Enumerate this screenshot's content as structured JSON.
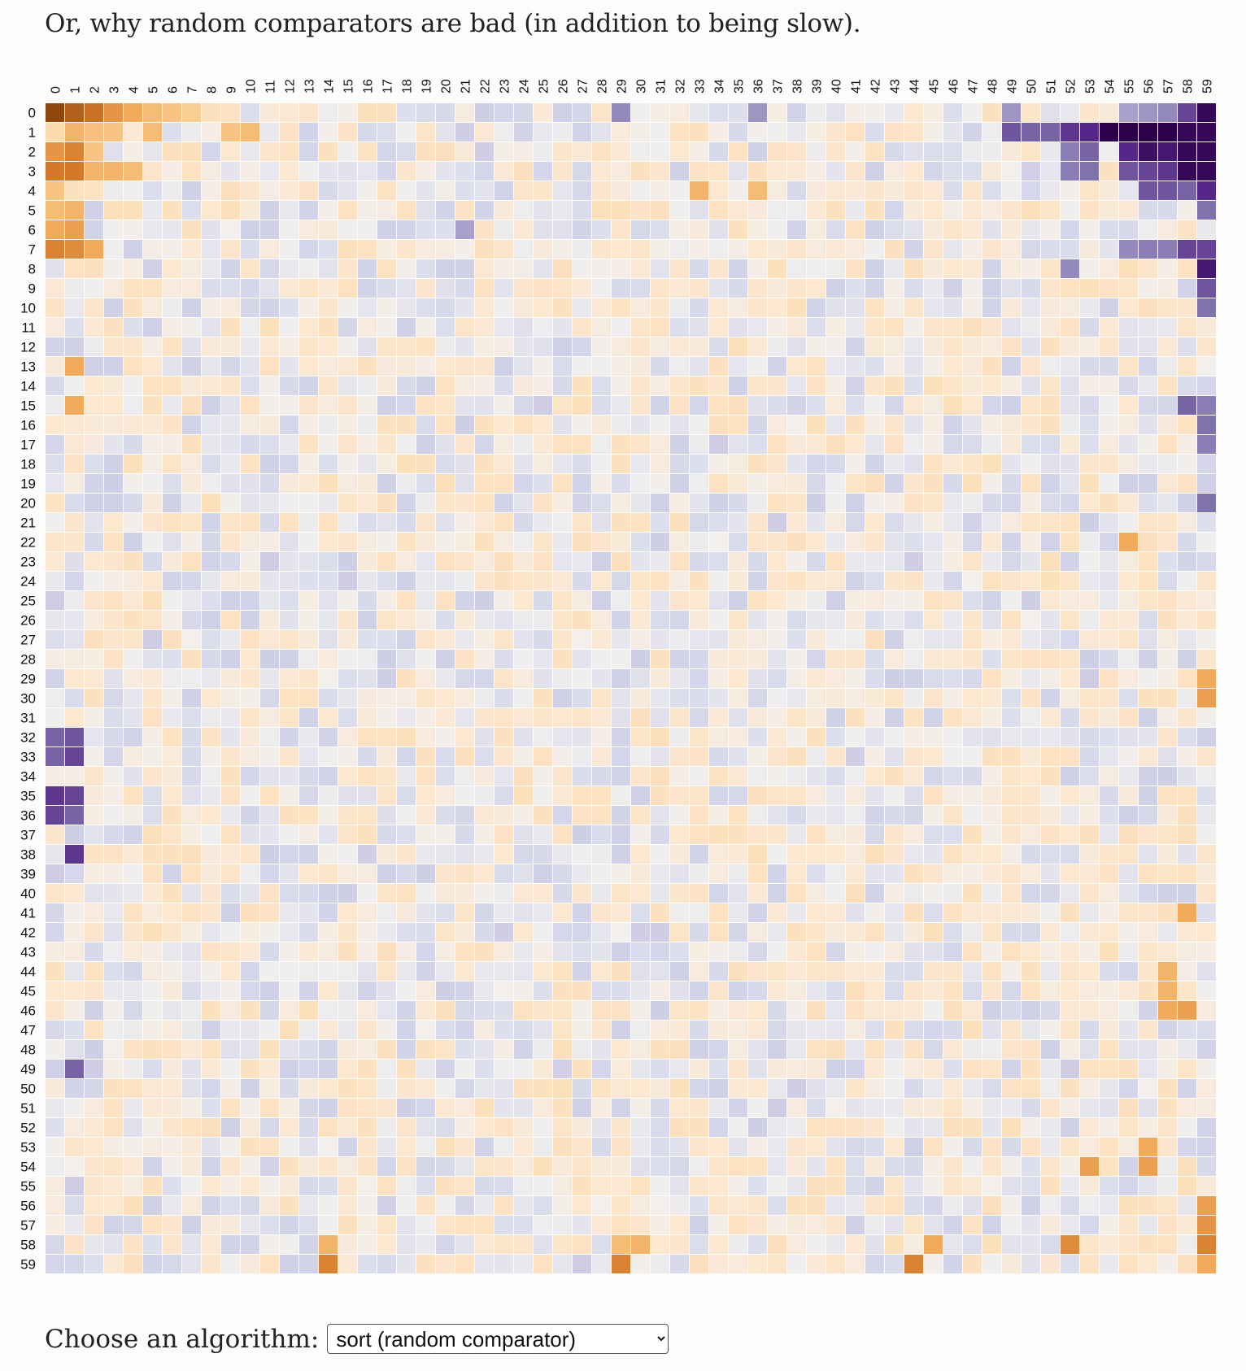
{
  "page": {
    "intro": "Or, why random comparators are bad (in addition to being slow)."
  },
  "controls": {
    "label": "Choose an algorithm:",
    "select": {
      "selected": "sort (random comparator)",
      "options": [
        "sort (random comparator)"
      ]
    }
  },
  "colors": {
    "low": "#2d004b",
    "mid": "#f7f7f7",
    "high": "#7f3b08",
    "gridline": "#ffffff"
  },
  "chart_data": {
    "type": "heatmap",
    "title": "",
    "xlabel": "",
    "ylabel": "",
    "size": 60,
    "x_labels": [
      "0",
      "1",
      "2",
      "3",
      "4",
      "5",
      "6",
      "7",
      "8",
      "9",
      "10",
      "11",
      "12",
      "13",
      "14",
      "15",
      "16",
      "17",
      "18",
      "19",
      "20",
      "21",
      "22",
      "23",
      "24",
      "25",
      "26",
      "27",
      "28",
      "29",
      "30",
      "31",
      "32",
      "33",
      "34",
      "35",
      "36",
      "37",
      "38",
      "39",
      "40",
      "41",
      "42",
      "43",
      "44",
      "45",
      "46",
      "47",
      "48",
      "49",
      "50",
      "51",
      "52",
      "53",
      "54",
      "55",
      "56",
      "57",
      "58",
      "59"
    ],
    "y_labels": [
      "0",
      "1",
      "2",
      "3",
      "4",
      "5",
      "6",
      "7",
      "8",
      "9",
      "10",
      "11",
      "12",
      "13",
      "14",
      "15",
      "16",
      "17",
      "18",
      "19",
      "20",
      "21",
      "22",
      "23",
      "24",
      "25",
      "26",
      "27",
      "28",
      "29",
      "30",
      "31",
      "32",
      "33",
      "34",
      "35",
      "36",
      "37",
      "38",
      "39",
      "40",
      "41",
      "42",
      "43",
      "44",
      "45",
      "46",
      "47",
      "48",
      "49",
      "50",
      "51",
      "52",
      "53",
      "54",
      "55",
      "56",
      "57",
      "58",
      "59"
    ],
    "value_range": [
      -1,
      1
    ],
    "colormap": "diverging purple-to-orange (PuOr)",
    "value_meaning": "positive = orange, negative = purple (estimated bias)",
    "strong_cells": [
      {
        "row": 0,
        "col": 0,
        "value": 0.95
      },
      {
        "row": 0,
        "col": 1,
        "value": 0.85
      },
      {
        "row": 0,
        "col": 2,
        "value": 0.78
      },
      {
        "row": 0,
        "col": 3,
        "value": 0.6
      },
      {
        "row": 0,
        "col": 4,
        "value": 0.5
      },
      {
        "row": 0,
        "col": 5,
        "value": 0.4
      },
      {
        "row": 0,
        "col": 6,
        "value": 0.35
      },
      {
        "row": 0,
        "col": 7,
        "value": 0.3
      },
      {
        "row": 0,
        "col": 29,
        "value": -0.4
      },
      {
        "row": 0,
        "col": 36,
        "value": -0.35
      },
      {
        "row": 0,
        "col": 49,
        "value": -0.35
      },
      {
        "row": 0,
        "col": 55,
        "value": -0.3
      },
      {
        "row": 0,
        "col": 56,
        "value": -0.35
      },
      {
        "row": 0,
        "col": 57,
        "value": -0.4
      },
      {
        "row": 0,
        "col": 58,
        "value": -0.65
      },
      {
        "row": 0,
        "col": 59,
        "value": -0.95
      },
      {
        "row": 1,
        "col": 0,
        "value": 0.2
      },
      {
        "row": 1,
        "col": 1,
        "value": 0.45
      },
      {
        "row": 1,
        "col": 2,
        "value": 0.38
      },
      {
        "row": 1,
        "col": 3,
        "value": 0.35
      },
      {
        "row": 1,
        "col": 5,
        "value": 0.4
      },
      {
        "row": 1,
        "col": 9,
        "value": 0.35
      },
      {
        "row": 1,
        "col": 10,
        "value": 0.4
      },
      {
        "row": 1,
        "col": 49,
        "value": -0.6
      },
      {
        "row": 1,
        "col": 50,
        "value": -0.55
      },
      {
        "row": 1,
        "col": 51,
        "value": -0.55
      },
      {
        "row": 1,
        "col": 52,
        "value": -0.7
      },
      {
        "row": 1,
        "col": 53,
        "value": -0.75
      },
      {
        "row": 1,
        "col": 54,
        "value": -1.0
      },
      {
        "row": 1,
        "col": 55,
        "value": -1.0
      },
      {
        "row": 1,
        "col": 56,
        "value": -1.0
      },
      {
        "row": 1,
        "col": 57,
        "value": -1.0
      },
      {
        "row": 1,
        "col": 58,
        "value": -0.95
      },
      {
        "row": 1,
        "col": 59,
        "value": -0.95
      },
      {
        "row": 2,
        "col": 0,
        "value": 0.6
      },
      {
        "row": 2,
        "col": 1,
        "value": 0.7
      },
      {
        "row": 2,
        "col": 2,
        "value": 0.35
      },
      {
        "row": 2,
        "col": 52,
        "value": -0.45
      },
      {
        "row": 2,
        "col": 53,
        "value": -0.55
      },
      {
        "row": 2,
        "col": 55,
        "value": -0.75
      },
      {
        "row": 2,
        "col": 56,
        "value": -0.9
      },
      {
        "row": 2,
        "col": 57,
        "value": -0.85
      },
      {
        "row": 2,
        "col": 58,
        "value": -0.95
      },
      {
        "row": 2,
        "col": 59,
        "value": -0.95
      },
      {
        "row": 3,
        "col": 0,
        "value": 0.75
      },
      {
        "row": 3,
        "col": 1,
        "value": 0.75
      },
      {
        "row": 3,
        "col": 2,
        "value": 0.45
      },
      {
        "row": 3,
        "col": 3,
        "value": 0.45
      },
      {
        "row": 3,
        "col": 4,
        "value": 0.4
      },
      {
        "row": 3,
        "col": 52,
        "value": -0.45
      },
      {
        "row": 3,
        "col": 53,
        "value": -0.5
      },
      {
        "row": 3,
        "col": 55,
        "value": -0.6
      },
      {
        "row": 3,
        "col": 56,
        "value": -0.65
      },
      {
        "row": 3,
        "col": 57,
        "value": -0.7
      },
      {
        "row": 3,
        "col": 58,
        "value": -0.95
      },
      {
        "row": 3,
        "col": 59,
        "value": -0.95
      },
      {
        "row": 4,
        "col": 0,
        "value": 0.35
      },
      {
        "row": 4,
        "col": 33,
        "value": 0.45
      },
      {
        "row": 4,
        "col": 36,
        "value": 0.4
      },
      {
        "row": 4,
        "col": 56,
        "value": -0.6
      },
      {
        "row": 4,
        "col": 57,
        "value": -0.6
      },
      {
        "row": 4,
        "col": 58,
        "value": -0.55
      },
      {
        "row": 4,
        "col": 59,
        "value": -0.75
      },
      {
        "row": 5,
        "col": 0,
        "value": 0.4
      },
      {
        "row": 5,
        "col": 1,
        "value": 0.45
      },
      {
        "row": 5,
        "col": 59,
        "value": -0.5
      },
      {
        "row": 6,
        "col": 0,
        "value": 0.5
      },
      {
        "row": 6,
        "col": 1,
        "value": 0.55
      },
      {
        "row": 6,
        "col": 21,
        "value": -0.3
      },
      {
        "row": 7,
        "col": 0,
        "value": 0.7
      },
      {
        "row": 7,
        "col": 1,
        "value": 0.65
      },
      {
        "row": 7,
        "col": 2,
        "value": 0.5
      },
      {
        "row": 7,
        "col": 55,
        "value": -0.4
      },
      {
        "row": 7,
        "col": 56,
        "value": -0.45
      },
      {
        "row": 7,
        "col": 57,
        "value": -0.45
      },
      {
        "row": 7,
        "col": 58,
        "value": -0.65
      },
      {
        "row": 7,
        "col": 59,
        "value": -0.65
      },
      {
        "row": 8,
        "col": 52,
        "value": -0.4
      },
      {
        "row": 8,
        "col": 59,
        "value": -0.85
      },
      {
        "row": 9,
        "col": 59,
        "value": -0.6
      },
      {
        "row": 10,
        "col": 59,
        "value": -0.5
      },
      {
        "row": 13,
        "col": 1,
        "value": 0.5
      },
      {
        "row": 15,
        "col": 1,
        "value": 0.5
      },
      {
        "row": 15,
        "col": 58,
        "value": -0.55
      },
      {
        "row": 15,
        "col": 59,
        "value": -0.45
      },
      {
        "row": 16,
        "col": 59,
        "value": -0.5
      },
      {
        "row": 17,
        "col": 59,
        "value": -0.45
      },
      {
        "row": 20,
        "col": 59,
        "value": -0.5
      },
      {
        "row": 22,
        "col": 55,
        "value": 0.5
      },
      {
        "row": 29,
        "col": 59,
        "value": 0.5
      },
      {
        "row": 30,
        "col": 59,
        "value": 0.55
      },
      {
        "row": 32,
        "col": 0,
        "value": -0.55
      },
      {
        "row": 32,
        "col": 1,
        "value": -0.6
      },
      {
        "row": 33,
        "col": 0,
        "value": -0.55
      },
      {
        "row": 33,
        "col": 1,
        "value": -0.65
      },
      {
        "row": 35,
        "col": 0,
        "value": -0.7
      },
      {
        "row": 35,
        "col": 1,
        "value": -0.65
      },
      {
        "row": 36,
        "col": 0,
        "value": -0.65
      },
      {
        "row": 36,
        "col": 1,
        "value": -0.55
      },
      {
        "row": 38,
        "col": 1,
        "value": -0.7
      },
      {
        "row": 49,
        "col": 1,
        "value": -0.55
      },
      {
        "row": 44,
        "col": 57,
        "value": 0.45
      },
      {
        "row": 45,
        "col": 57,
        "value": 0.45
      },
      {
        "row": 46,
        "col": 57,
        "value": 0.5
      },
      {
        "row": 46,
        "col": 58,
        "value": 0.55
      },
      {
        "row": 41,
        "col": 58,
        "value": 0.5
      },
      {
        "row": 53,
        "col": 56,
        "value": 0.5
      },
      {
        "row": 54,
        "col": 56,
        "value": 0.55
      },
      {
        "row": 54,
        "col": 53,
        "value": 0.55
      },
      {
        "row": 58,
        "col": 52,
        "value": 0.65
      },
      {
        "row": 58,
        "col": 45,
        "value": 0.5
      },
      {
        "row": 56,
        "col": 59,
        "value": 0.55
      },
      {
        "row": 57,
        "col": 59,
        "value": 0.6
      },
      {
        "row": 58,
        "col": 59,
        "value": 0.7
      },
      {
        "row": 59,
        "col": 59,
        "value": 0.5
      },
      {
        "row": 59,
        "col": 14,
        "value": 0.7
      },
      {
        "row": 59,
        "col": 29,
        "value": 0.7
      },
      {
        "row": 59,
        "col": 44,
        "value": 0.7
      },
      {
        "row": 58,
        "col": 14,
        "value": 0.45
      },
      {
        "row": 58,
        "col": 29,
        "value": 0.4
      },
      {
        "row": 58,
        "col": 30,
        "value": 0.45
      }
    ]
  }
}
